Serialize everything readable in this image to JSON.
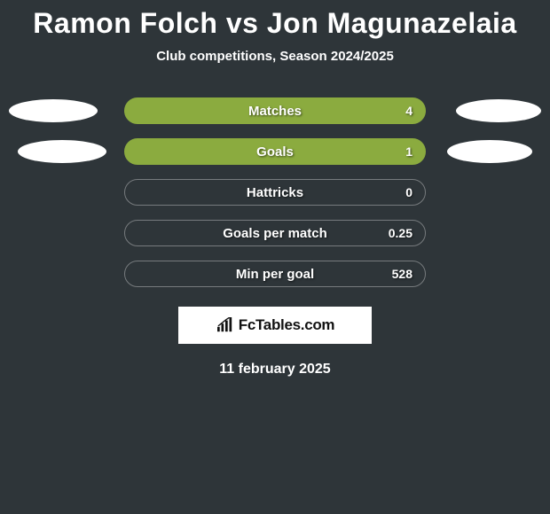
{
  "title": "Ramon Folch vs Jon Magunazelaia",
  "subtitle": "Club competitions, Season 2024/2025",
  "date": "11 february 2025",
  "logo_text": "FcTables.com",
  "colors": {
    "bar_filled": "#8bab3f",
    "bar_empty_border": "rgba(255,255,255,0.35)",
    "background": "#2e3539"
  },
  "rows": [
    {
      "label": "Matches",
      "value": "4",
      "filled": true,
      "left_ellipse": true,
      "right_ellipse": true
    },
    {
      "label": "Goals",
      "value": "1",
      "filled": true,
      "left_ellipse": true,
      "right_ellipse": true
    },
    {
      "label": "Hattricks",
      "value": "0",
      "filled": false,
      "left_ellipse": false,
      "right_ellipse": false
    },
    {
      "label": "Goals per match",
      "value": "0.25",
      "filled": false,
      "left_ellipse": false,
      "right_ellipse": false
    },
    {
      "label": "Min per goal",
      "value": "528",
      "filled": false,
      "left_ellipse": false,
      "right_ellipse": false
    }
  ]
}
